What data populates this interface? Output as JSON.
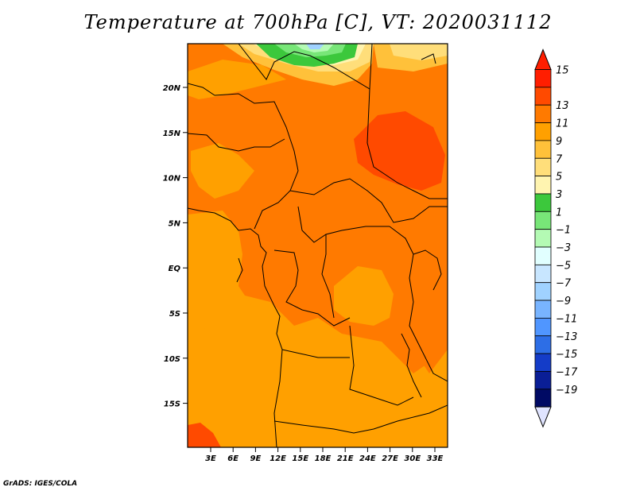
{
  "title": "Temperature at 700hPa [C], VT: 2020031112",
  "credit": "GrADS: IGES/COLA",
  "x_ticks": [
    "3E",
    "6E",
    "9E",
    "12E",
    "15E",
    "18E",
    "21E",
    "24E",
    "27E",
    "30E",
    "33E"
  ],
  "y_ticks": [
    "20N",
    "15N",
    "10N",
    "5N",
    "EQ",
    "5S",
    "10S",
    "15S"
  ],
  "colorbar": {
    "labels": [
      "15",
      "13",
      "11",
      "9",
      "7",
      "5",
      "3",
      "1",
      "−1",
      "−3",
      "−5",
      "−7",
      "−9",
      "−11",
      "−13",
      "−15",
      "−17",
      "−19"
    ],
    "colors": [
      "#ff1e00",
      "#ff4a00",
      "#ff7a00",
      "#ffa000",
      "#ffc13a",
      "#ffde7a",
      "#fff4b0",
      "#3cc83c",
      "#78e678",
      "#b4fab4",
      "#e1ffff",
      "#c8e6ff",
      "#a0d2ff",
      "#78b4ff",
      "#5096ff",
      "#2d6ee6",
      "#143cc8",
      "#0a1e96",
      "#000a64"
    ],
    "top_triangle_color": "#ff1e00",
    "bottom_triangle_color": "#e0e4ff"
  }
}
